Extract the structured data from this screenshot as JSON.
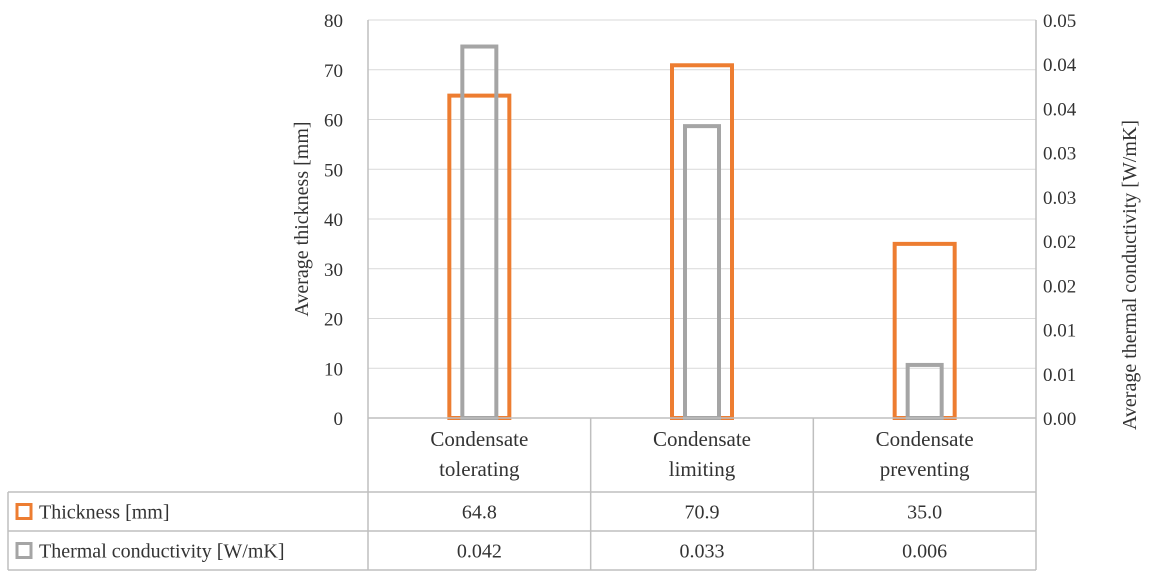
{
  "chart_data": {
    "type": "bar",
    "categories": [
      [
        "Condensate",
        "tolerating"
      ],
      [
        "Condensate",
        "limiting"
      ],
      [
        "Condensate",
        "preventing"
      ]
    ],
    "series": [
      {
        "name": "Thickness [mm]",
        "axis": "left",
        "values": [
          64.8,
          70.9,
          35.0
        ],
        "table_values": [
          "64.8",
          "70.9",
          "35.0"
        ],
        "color": "#ED7D31"
      },
      {
        "name": "Thermal conductivity [W/mK]",
        "axis": "right",
        "values": [
          0.042,
          0.033,
          0.006
        ],
        "table_values": [
          "0.042",
          "0.033",
          "0.006"
        ],
        "color": "#A5A5A5"
      }
    ],
    "ylabel": "Average thickness [mm]",
    "y2label": "Average thermal conductivity [W/mK]",
    "ylim": [
      0,
      80
    ],
    "y2lim": [
      0,
      0.045
    ],
    "yticks": [
      "0",
      "10",
      "20",
      "30",
      "40",
      "50",
      "60",
      "70",
      "80"
    ],
    "y2ticks": [
      "0.00",
      "0.01",
      "0.01",
      "0.02",
      "0.02",
      "0.03",
      "0.03",
      "0.04",
      "0.04",
      "0.05"
    ],
    "grid": true,
    "legend": "data table"
  }
}
